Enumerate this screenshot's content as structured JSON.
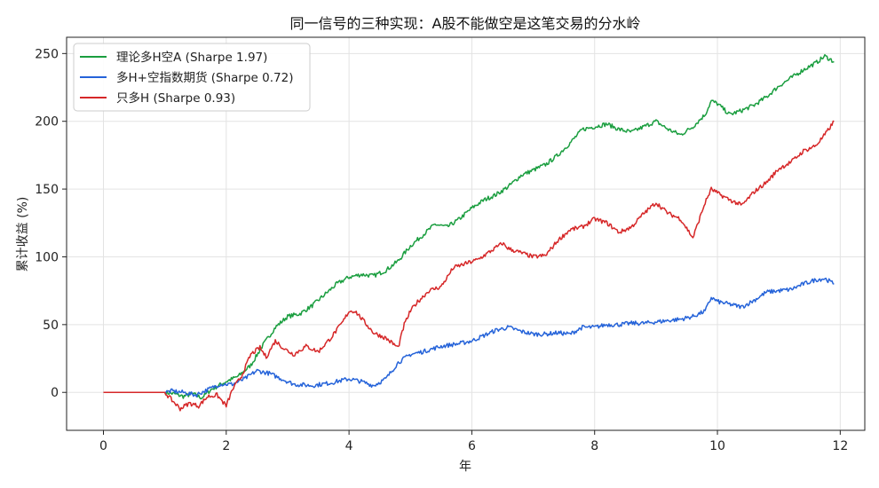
{
  "chart_data": {
    "type": "line",
    "title": "同一信号的三种实现：A股不能做空是这笔交易的分水岭",
    "xlabel": "年",
    "ylabel": "累计收益 (%)",
    "xlim": [
      -0.6,
      12.4
    ],
    "ylim": [
      -28,
      262
    ],
    "xticks": [
      0,
      2,
      4,
      6,
      8,
      10,
      12
    ],
    "yticks": [
      0,
      50,
      100,
      150,
      200,
      250
    ],
    "grid": true,
    "legend_position": "top-left",
    "series": [
      {
        "name": "理论多H空A (Sharpe 1.97)",
        "color": "#1a9e3f",
        "points": [
          [
            0,
            0
          ],
          [
            1.0,
            0
          ],
          [
            1.15,
            -1
          ],
          [
            1.3,
            -3
          ],
          [
            1.45,
            -1
          ],
          [
            1.6,
            -4
          ],
          [
            1.75,
            2
          ],
          [
            2.0,
            8
          ],
          [
            2.2,
            12
          ],
          [
            2.4,
            20
          ],
          [
            2.6,
            35
          ],
          [
            2.8,
            48
          ],
          [
            3.0,
            56
          ],
          [
            3.2,
            58
          ],
          [
            3.4,
            64
          ],
          [
            3.6,
            72
          ],
          [
            3.8,
            80
          ],
          [
            4.0,
            85
          ],
          [
            4.2,
            87
          ],
          [
            4.4,
            86
          ],
          [
            4.6,
            90
          ],
          [
            4.8,
            97
          ],
          [
            5.0,
            108
          ],
          [
            5.2,
            116
          ],
          [
            5.4,
            124
          ],
          [
            5.6,
            122
          ],
          [
            5.8,
            128
          ],
          [
            6.0,
            136
          ],
          [
            6.2,
            142
          ],
          [
            6.4,
            146
          ],
          [
            6.6,
            152
          ],
          [
            6.8,
            160
          ],
          [
            7.0,
            164
          ],
          [
            7.2,
            168
          ],
          [
            7.4,
            175
          ],
          [
            7.6,
            184
          ],
          [
            7.8,
            194
          ],
          [
            8.0,
            196
          ],
          [
            8.2,
            198
          ],
          [
            8.4,
            194
          ],
          [
            8.6,
            192
          ],
          [
            8.8,
            196
          ],
          [
            9.0,
            200
          ],
          [
            9.2,
            194
          ],
          [
            9.4,
            190
          ],
          [
            9.6,
            196
          ],
          [
            9.8,
            205
          ],
          [
            9.9,
            215
          ],
          [
            10.0,
            213
          ],
          [
            10.2,
            205
          ],
          [
            10.4,
            208
          ],
          [
            10.6,
            212
          ],
          [
            10.8,
            218
          ],
          [
            11.0,
            226
          ],
          [
            11.2,
            232
          ],
          [
            11.4,
            238
          ],
          [
            11.6,
            243
          ],
          [
            11.75,
            248
          ],
          [
            11.9,
            244
          ]
        ]
      },
      {
        "name": "多H+空指数期货 (Sharpe 0.72)",
        "color": "#2563d9",
        "points": [
          [
            0,
            0
          ],
          [
            1.0,
            0
          ],
          [
            1.1,
            1
          ],
          [
            1.3,
            0
          ],
          [
            1.5,
            -2
          ],
          [
            1.7,
            2
          ],
          [
            1.9,
            6
          ],
          [
            2.1,
            6
          ],
          [
            2.3,
            10
          ],
          [
            2.5,
            16
          ],
          [
            2.7,
            14
          ],
          [
            2.9,
            10
          ],
          [
            3.1,
            6
          ],
          [
            3.4,
            5
          ],
          [
            3.7,
            7
          ],
          [
            4.0,
            10
          ],
          [
            4.2,
            8
          ],
          [
            4.4,
            5
          ],
          [
            4.6,
            10
          ],
          [
            4.8,
            22
          ],
          [
            5.0,
            28
          ],
          [
            5.2,
            30
          ],
          [
            5.5,
            34
          ],
          [
            5.8,
            36
          ],
          [
            6.0,
            38
          ],
          [
            6.2,
            42
          ],
          [
            6.4,
            46
          ],
          [
            6.6,
            48
          ],
          [
            6.8,
            45
          ],
          [
            7.0,
            43
          ],
          [
            7.2,
            43
          ],
          [
            7.4,
            44
          ],
          [
            7.6,
            43
          ],
          [
            7.8,
            48
          ],
          [
            8.0,
            48
          ],
          [
            8.2,
            50
          ],
          [
            8.4,
            50
          ],
          [
            8.6,
            51
          ],
          [
            8.8,
            51
          ],
          [
            9.0,
            52
          ],
          [
            9.2,
            53
          ],
          [
            9.4,
            54
          ],
          [
            9.6,
            56
          ],
          [
            9.8,
            60
          ],
          [
            9.9,
            70
          ],
          [
            10.0,
            67
          ],
          [
            10.2,
            65
          ],
          [
            10.4,
            63
          ],
          [
            10.6,
            68
          ],
          [
            10.8,
            74
          ],
          [
            11.0,
            75
          ],
          [
            11.2,
            76
          ],
          [
            11.4,
            80
          ],
          [
            11.6,
            83
          ],
          [
            11.75,
            84
          ],
          [
            11.9,
            80
          ]
        ]
      },
      {
        "name": "只多H (Sharpe 0.93)",
        "color": "#d62728",
        "points": [
          [
            0,
            0
          ],
          [
            1.0,
            0
          ],
          [
            1.1,
            -5
          ],
          [
            1.25,
            -12
          ],
          [
            1.4,
            -8
          ],
          [
            1.55,
            -10
          ],
          [
            1.7,
            -3
          ],
          [
            1.85,
            -2
          ],
          [
            2.0,
            -10
          ],
          [
            2.1,
            2
          ],
          [
            2.25,
            12
          ],
          [
            2.4,
            28
          ],
          [
            2.55,
            33
          ],
          [
            2.65,
            26
          ],
          [
            2.8,
            38
          ],
          [
            2.95,
            32
          ],
          [
            3.1,
            28
          ],
          [
            3.3,
            34
          ],
          [
            3.5,
            30
          ],
          [
            3.7,
            40
          ],
          [
            3.9,
            52
          ],
          [
            4.0,
            60
          ],
          [
            4.1,
            60
          ],
          [
            4.25,
            52
          ],
          [
            4.4,
            44
          ],
          [
            4.6,
            40
          ],
          [
            4.8,
            33
          ],
          [
            4.9,
            50
          ],
          [
            5.0,
            60
          ],
          [
            5.1,
            66
          ],
          [
            5.3,
            75
          ],
          [
            5.5,
            78
          ],
          [
            5.7,
            92
          ],
          [
            5.9,
            95
          ],
          [
            6.1,
            98
          ],
          [
            6.3,
            104
          ],
          [
            6.5,
            110
          ],
          [
            6.6,
            106
          ],
          [
            6.8,
            103
          ],
          [
            7.0,
            100
          ],
          [
            7.2,
            101
          ],
          [
            7.4,
            112
          ],
          [
            7.6,
            120
          ],
          [
            7.8,
            122
          ],
          [
            8.0,
            128
          ],
          [
            8.2,
            125
          ],
          [
            8.4,
            118
          ],
          [
            8.6,
            122
          ],
          [
            8.8,
            132
          ],
          [
            9.0,
            140
          ],
          [
            9.2,
            132
          ],
          [
            9.4,
            128
          ],
          [
            9.6,
            114
          ],
          [
            9.8,
            140
          ],
          [
            9.9,
            150
          ],
          [
            10.0,
            147
          ],
          [
            10.2,
            142
          ],
          [
            10.4,
            138
          ],
          [
            10.6,
            148
          ],
          [
            10.8,
            155
          ],
          [
            11.0,
            165
          ],
          [
            11.2,
            170
          ],
          [
            11.4,
            178
          ],
          [
            11.6,
            182
          ],
          [
            11.75,
            190
          ],
          [
            11.9,
            200
          ]
        ]
      }
    ]
  }
}
